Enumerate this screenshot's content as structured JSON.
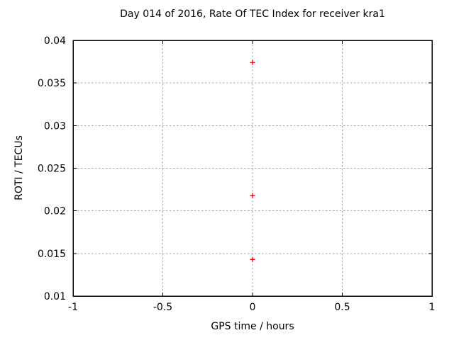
{
  "chart_data": {
    "type": "scatter",
    "title": "Day 014 of 2016, Rate Of TEC Index for receiver kra1",
    "xlabel": "GPS time / hours",
    "ylabel": "ROTI / TECUs",
    "xlim": [
      -1,
      1
    ],
    "ylim": [
      0.01,
      0.04
    ],
    "xticks": [
      -1,
      -0.5,
      0,
      0.5,
      1
    ],
    "yticks": [
      0.01,
      0.015,
      0.02,
      0.025,
      0.03,
      0.035,
      0.04
    ],
    "grid": true,
    "legend": "none",
    "marker": "plus",
    "marker_color": "#ff0000",
    "grid_color": "#a8a8a8",
    "axis_color": "#000000",
    "background_color": "#ffffff",
    "series": [
      {
        "name": "ROTI",
        "points": [
          {
            "x": 0,
            "y": 0.0374
          },
          {
            "x": 0,
            "y": 0.0218
          },
          {
            "x": 0,
            "y": 0.0143
          }
        ]
      }
    ]
  }
}
